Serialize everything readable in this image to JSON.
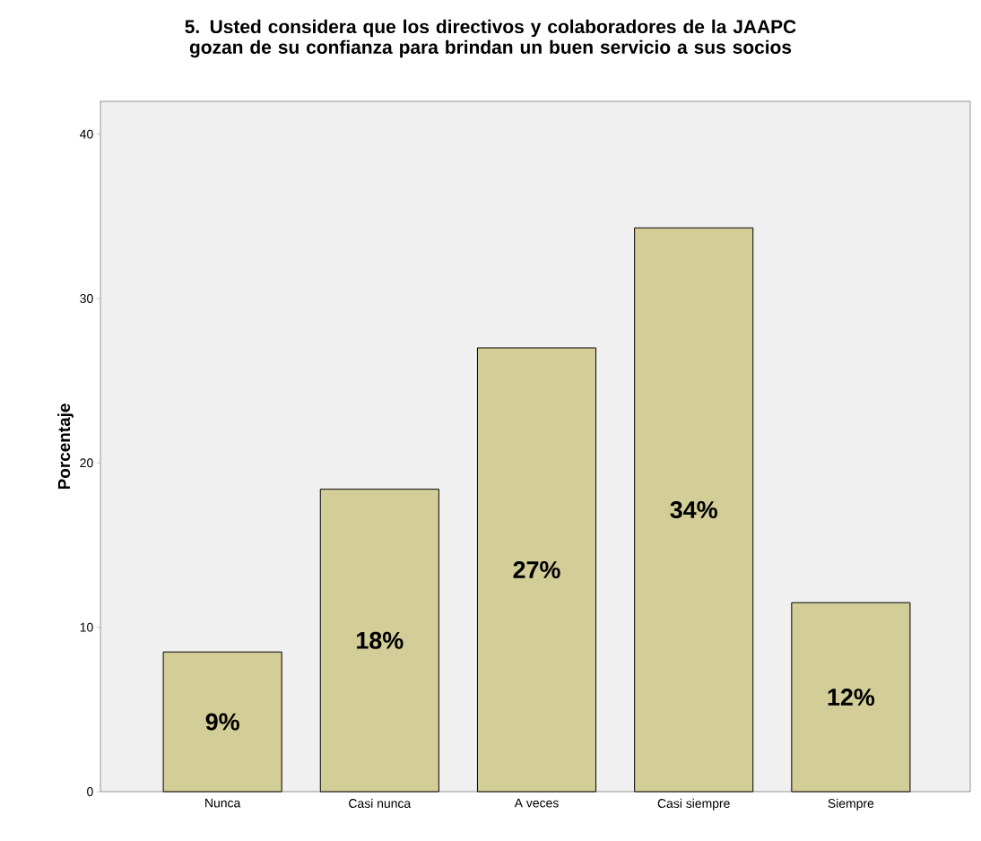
{
  "chart_data": {
    "type": "bar",
    "title": "5. Usted considera que los directivos y colaboradores de la JAAPC gozan de su confianza para brindan un buen servicio a sus socios",
    "ylabel": "Porcentaje",
    "categories": [
      "Nunca",
      "Casi nunca",
      "A veces",
      "Casi siempre",
      "Siempre"
    ],
    "values": [
      8.5,
      18.4,
      27.0,
      34.3,
      11.5
    ],
    "value_labels": [
      "9%",
      "18%",
      "27%",
      "34%",
      "12%"
    ],
    "color": "#d3ce97",
    "ylim": [
      0,
      42
    ],
    "yticks": [
      0,
      10,
      20,
      30,
      40
    ],
    "grid": false
  }
}
